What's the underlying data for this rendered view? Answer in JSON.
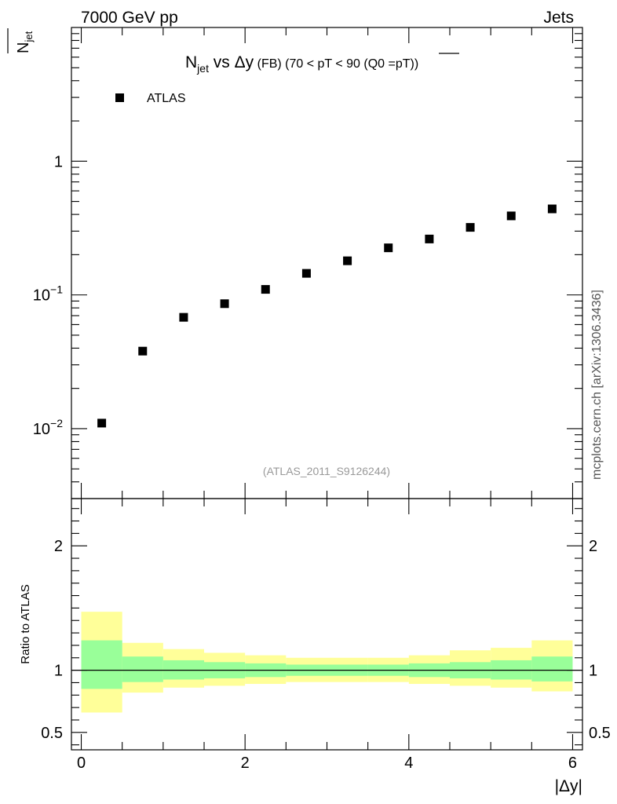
{
  "header": {
    "left": "7000 GeV pp",
    "right": "Jets"
  },
  "watermark": "mcplots.cern.ch [arXiv:1306.3436]",
  "chart_data": [
    {
      "type": "scatter",
      "title": {
        "main": "N",
        "main_sub": "jet",
        "vs": " vs Δy",
        "cut": " (FB) (70 < pT <  90 (Q0 =",
        "pt": "pT",
        "close": "))"
      },
      "ylabel": {
        "main": "N",
        "sub": "jet"
      },
      "xlabel": "|Δy|",
      "yscale": "log",
      "ylim": [
        0.003,
        10
      ],
      "xlim": [
        -0.12,
        6.12
      ],
      "grid": false,
      "legend_position": "top-left",
      "reference": "(ATLAS_2011_S9126244)",
      "yticks": [
        {
          "base": "10",
          "exp": "−2",
          "value": 0.01
        },
        {
          "base": "10",
          "exp": "−1",
          "value": 0.1
        },
        {
          "base": "1",
          "exp": "",
          "value": 1
        }
      ],
      "series": [
        {
          "name": "ATLAS",
          "color": "#000000",
          "marker": "square",
          "x": [
            0.25,
            0.75,
            1.25,
            1.75,
            2.25,
            2.75,
            3.25,
            3.75,
            4.25,
            4.75,
            5.25,
            5.75
          ],
          "y": [
            0.011,
            0.038,
            0.068,
            0.086,
            0.11,
            0.145,
            0.18,
            0.225,
            0.262,
            0.32,
            0.39,
            0.44
          ]
        }
      ]
    },
    {
      "type": "area",
      "ylabel": "Ratio to ATLAS",
      "ylim": [
        0.36,
        2.38
      ],
      "xlim": [
        -0.12,
        6.12
      ],
      "yticks_left": [
        "0.5",
        "1",
        "2"
      ],
      "yticks_right": [
        "0.5",
        "1",
        "2"
      ],
      "xticks": [
        "0",
        "2",
        "4",
        "6"
      ],
      "reference_line": 1.0,
      "band_colors": {
        "inner": "#99ff99",
        "outer": "#ffff99"
      },
      "bins": [
        {
          "lo": 0.0,
          "hi": 0.5,
          "inner": [
            0.85,
            1.24
          ],
          "outer": [
            0.66,
            1.47
          ]
        },
        {
          "lo": 0.5,
          "hi": 1.0,
          "inner": [
            0.905,
            1.11
          ],
          "outer": [
            0.82,
            1.22
          ]
        },
        {
          "lo": 1.0,
          "hi": 1.5,
          "inner": [
            0.925,
            1.08
          ],
          "outer": [
            0.86,
            1.17
          ]
        },
        {
          "lo": 1.5,
          "hi": 2.0,
          "inner": [
            0.935,
            1.065
          ],
          "outer": [
            0.875,
            1.14
          ]
        },
        {
          "lo": 2.0,
          "hi": 2.5,
          "inner": [
            0.945,
            1.055
          ],
          "outer": [
            0.89,
            1.12
          ]
        },
        {
          "lo": 2.5,
          "hi": 3.0,
          "inner": [
            0.955,
            1.045
          ],
          "outer": [
            0.905,
            1.1
          ]
        },
        {
          "lo": 3.0,
          "hi": 3.5,
          "inner": [
            0.955,
            1.045
          ],
          "outer": [
            0.905,
            1.1
          ]
        },
        {
          "lo": 3.5,
          "hi": 4.0,
          "inner": [
            0.955,
            1.045
          ],
          "outer": [
            0.905,
            1.1
          ]
        },
        {
          "lo": 4.0,
          "hi": 4.5,
          "inner": [
            0.945,
            1.055
          ],
          "outer": [
            0.89,
            1.12
          ]
        },
        {
          "lo": 4.5,
          "hi": 5.0,
          "inner": [
            0.935,
            1.065
          ],
          "outer": [
            0.875,
            1.16
          ]
        },
        {
          "lo": 5.0,
          "hi": 5.5,
          "inner": [
            0.925,
            1.08
          ],
          "outer": [
            0.86,
            1.18
          ]
        },
        {
          "lo": 5.5,
          "hi": 6.0,
          "inner": [
            0.91,
            1.11
          ],
          "outer": [
            0.83,
            1.24
          ]
        }
      ]
    }
  ]
}
